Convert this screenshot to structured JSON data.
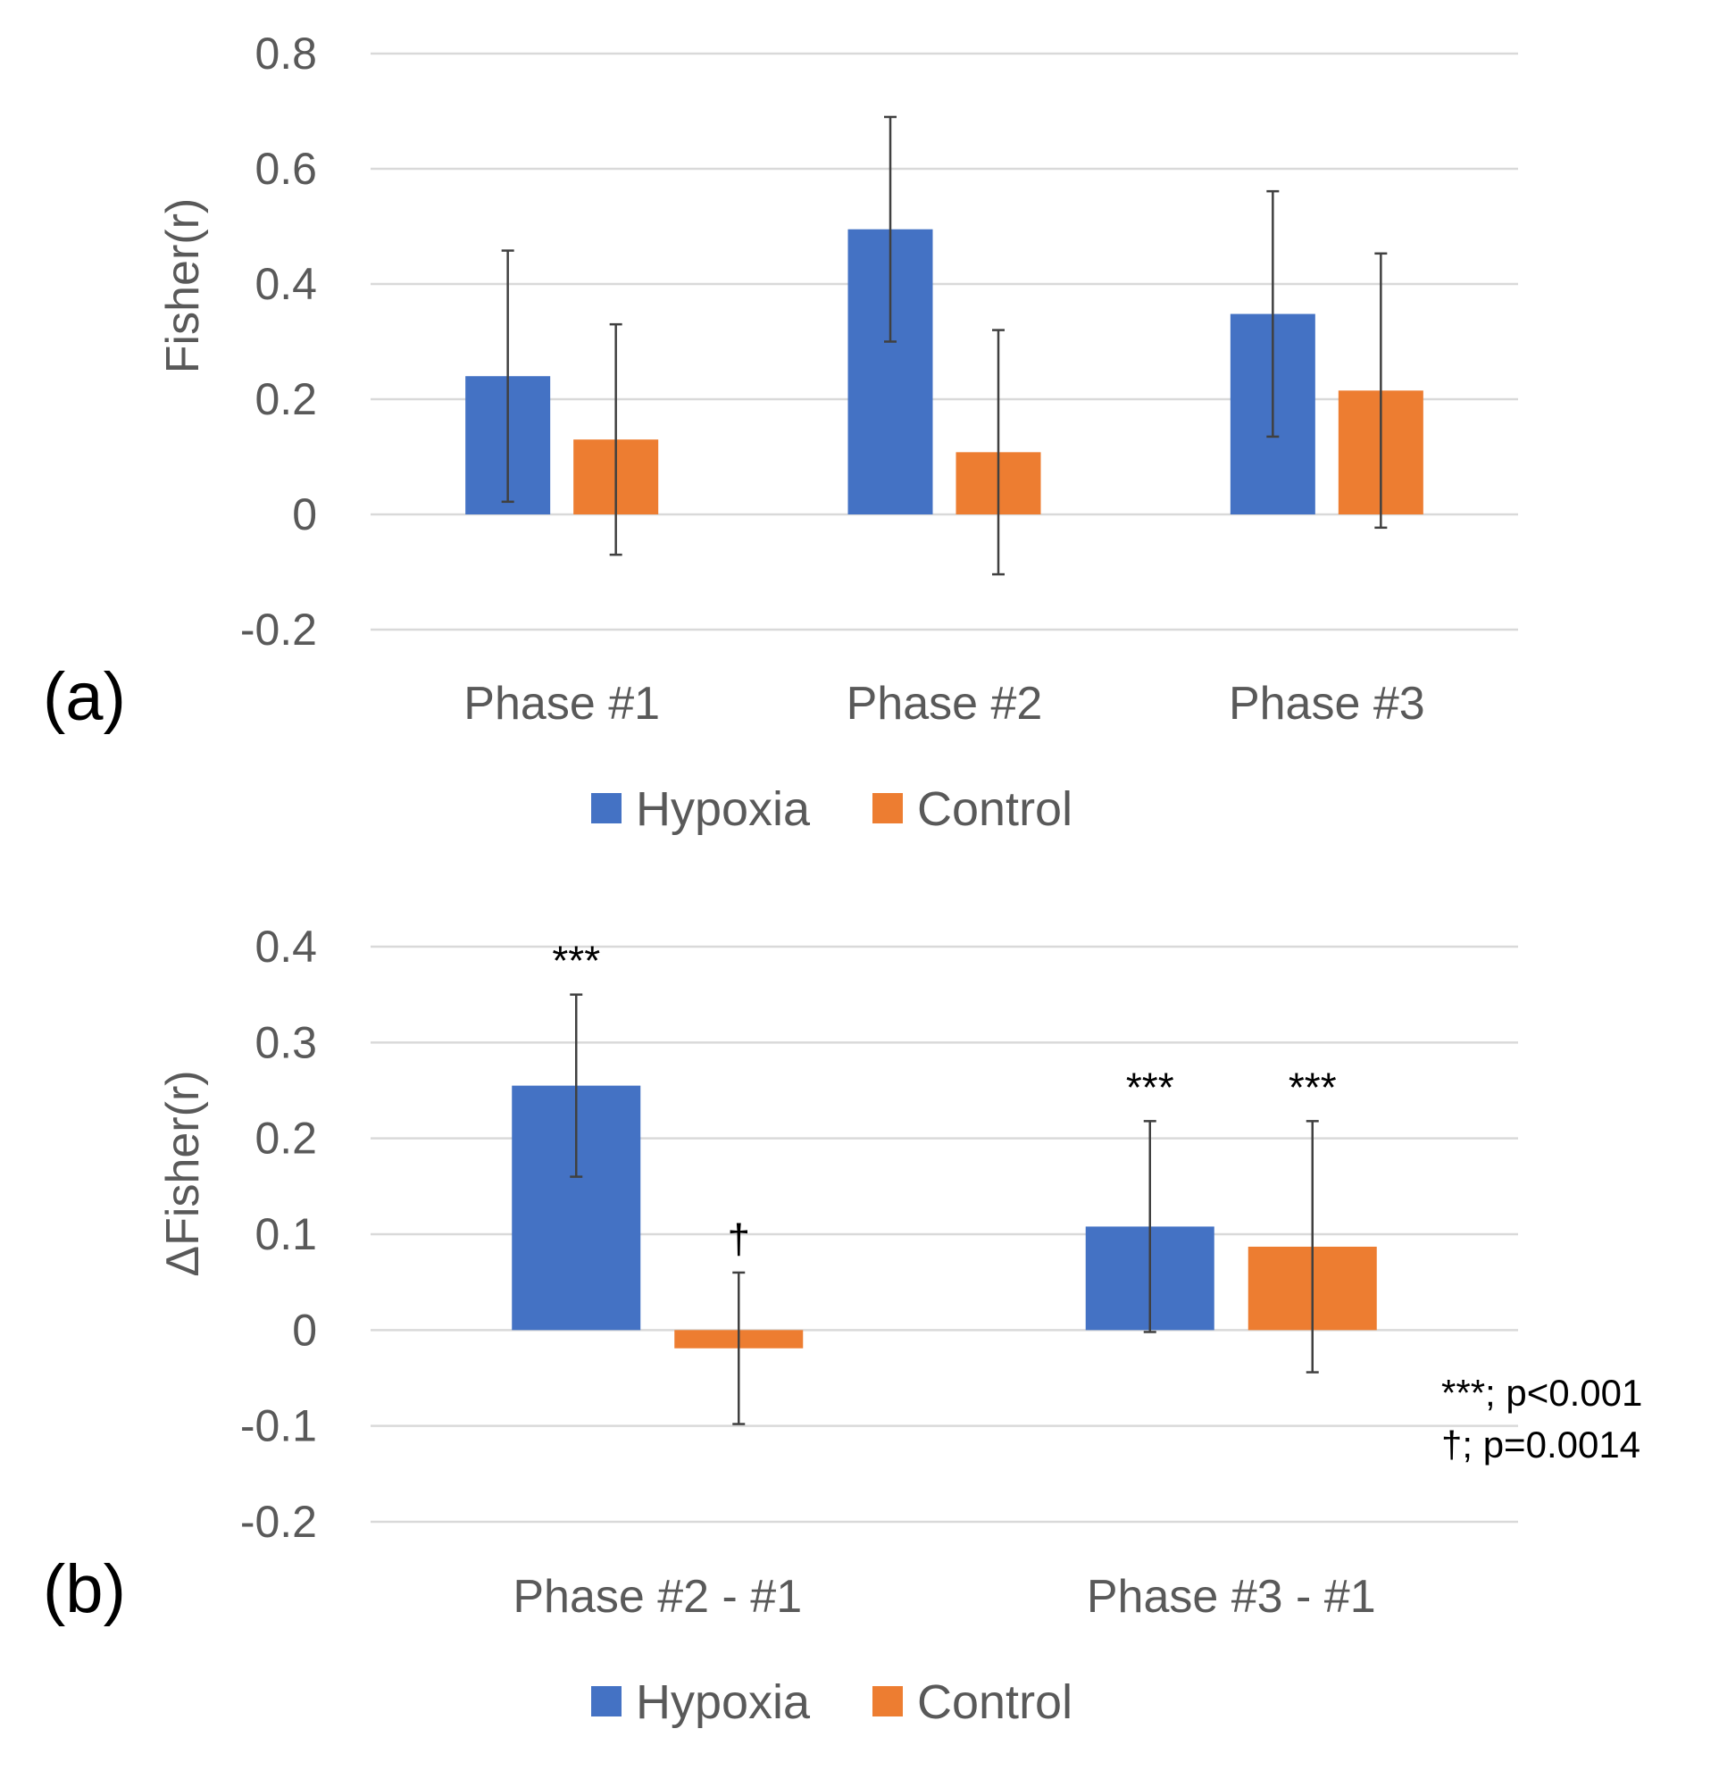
{
  "colors": {
    "hypoxia": "#4472c4",
    "control": "#ed7d31"
  },
  "chart_data": [
    {
      "type": "bar",
      "panel_label": "(a)",
      "ylabel": "Fisher(r)",
      "xlabel": "",
      "ylim": [
        -0.2,
        0.8
      ],
      "yticks": [
        -0.2,
        0,
        0.2,
        0.4,
        0.6,
        0.8
      ],
      "ytick_labels": [
        "-0.2",
        "0",
        "0.2",
        "0.4",
        "0.6",
        "0.8"
      ],
      "categories": [
        "Phase #1",
        "Phase #2",
        "Phase #3"
      ],
      "series": [
        {
          "name": "Hypoxia",
          "color": "#4472c4",
          "values": [
            0.24,
            0.495,
            0.348
          ],
          "err": [
            0.218,
            0.195,
            0.213
          ],
          "annotations": [
            "",
            "",
            ""
          ]
        },
        {
          "name": "Control",
          "color": "#ed7d31",
          "values": [
            0.13,
            0.108,
            0.215
          ],
          "err": [
            0.2,
            0.212,
            0.238
          ],
          "annotations": [
            "",
            "",
            ""
          ]
        }
      ],
      "legend": [
        "Hypoxia",
        "Control"
      ],
      "legend_position": "bottom",
      "grid": true,
      "notes": []
    },
    {
      "type": "bar",
      "panel_label": "(b)",
      "ylabel": "ΔFisher(r)",
      "xlabel": "",
      "ylim": [
        -0.2,
        0.4
      ],
      "yticks": [
        -0.2,
        -0.1,
        0,
        0.1,
        0.2,
        0.3,
        0.4
      ],
      "ytick_labels": [
        "-0.2",
        "-0.1",
        "0",
        "0.1",
        "0.2",
        "0.3",
        "0.4"
      ],
      "categories": [
        "Phase #2 - #1",
        "Phase #3 - #1"
      ],
      "series": [
        {
          "name": "Hypoxia",
          "color": "#4472c4",
          "values": [
            0.255,
            0.108
          ],
          "err": [
            0.095,
            0.11
          ],
          "annotations": [
            "***",
            "***"
          ]
        },
        {
          "name": "Control",
          "color": "#ed7d31",
          "values": [
            -0.019,
            0.087
          ],
          "err": [
            0.079,
            0.131
          ],
          "annotations": [
            "†",
            "***"
          ]
        }
      ],
      "legend": [
        "Hypoxia",
        "Control"
      ],
      "legend_position": "bottom",
      "grid": true,
      "notes": [
        "***; p<0.001",
        "†; p=0.0014"
      ]
    }
  ]
}
